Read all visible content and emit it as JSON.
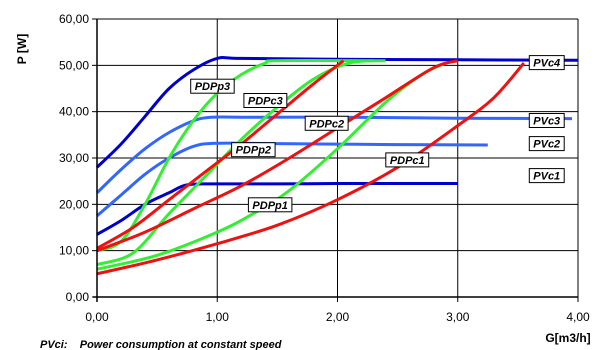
{
  "chart_data": {
    "type": "line",
    "xlabel": "G[m3/h]",
    "ylabel": "P [W]",
    "xlim": [
      0,
      4
    ],
    "ylim": [
      0,
      60
    ],
    "xticks": [
      "0,00",
      "1,00",
      "2,00",
      "3,00",
      "4,00"
    ],
    "yticks": [
      "0,00",
      "10,00",
      "20,00",
      "30,00",
      "40,00",
      "50,00",
      "60,00"
    ],
    "grid": true,
    "caption": "PVci:    Power consumption at constant speed",
    "colors": {
      "constant_speed": "#0000cc",
      "constant_speed_mid": "#3366ff",
      "pressure_proportional": "#33ee33",
      "constant_pressure": "#ee1111"
    },
    "series": [
      {
        "name": "PVc4",
        "color": "#0000cc",
        "x": [
          0,
          0.2,
          0.4,
          0.6,
          0.8,
          1.0,
          1.2,
          2.0,
          3.0,
          4.0
        ],
        "y": [
          28,
          33,
          39,
          45,
          49,
          51.5,
          51.5,
          51.3,
          51.2,
          51.1
        ]
      },
      {
        "name": "PVc3",
        "color": "#3366ff",
        "x": [
          0,
          0.2,
          0.4,
          0.6,
          0.8,
          0.95,
          1.2,
          2.0,
          3.0,
          3.95
        ],
        "y": [
          22.5,
          27.5,
          32,
          35.5,
          38,
          38.8,
          38.8,
          38.8,
          38.6,
          38.5
        ]
      },
      {
        "name": "PVc2",
        "color": "#3366ff",
        "x": [
          0,
          0.2,
          0.4,
          0.6,
          0.8,
          1.0,
          1.5,
          2.0,
          2.5,
          3.25
        ],
        "y": [
          17.5,
          22,
          26.5,
          30,
          32.5,
          33.2,
          33.1,
          33,
          32.9,
          32.8
        ]
      },
      {
        "name": "PVc1",
        "color": "#0000cc",
        "x": [
          0,
          0.2,
          0.4,
          0.6,
          0.75,
          1.0,
          1.5,
          2.0,
          2.5,
          3.0
        ],
        "y": [
          13.5,
          16.5,
          20,
          22.5,
          24.2,
          24.4,
          24.4,
          24.5,
          24.5,
          24.5
        ]
      },
      {
        "name": "PDPp3",
        "color": "#33ee33",
        "x": [
          0,
          0.2,
          0.4,
          0.6,
          0.8,
          1.0,
          1.2,
          1.4,
          1.5,
          2.3
        ],
        "y": [
          10,
          12,
          20,
          30,
          38,
          44,
          48,
          50.5,
          51,
          51
        ]
      },
      {
        "name": "PDPp2",
        "color": "#33ee33",
        "x": [
          0,
          0.3,
          0.6,
          0.9,
          1.2,
          1.5,
          1.8,
          2.1,
          2.4
        ],
        "y": [
          7,
          9.5,
          18,
          26,
          34,
          41,
          47,
          50.5,
          51
        ]
      },
      {
        "name": "PDPp1",
        "color": "#33ee33",
        "x": [
          0,
          0.5,
          1.0,
          1.3,
          1.6,
          2.0,
          2.4,
          2.7,
          2.9
        ],
        "y": [
          6,
          9,
          14,
          18,
          23,
          32,
          42,
          48,
          50.5
        ]
      },
      {
        "name": "PDPc3",
        "color": "#ee1111",
        "x": [
          0,
          0.3,
          0.6,
          0.9,
          1.2,
          1.5,
          1.8,
          2.05
        ],
        "y": [
          10.5,
          15,
          21,
          27,
          33,
          39.5,
          46,
          51
        ]
      },
      {
        "name": "PDPc2",
        "color": "#ee1111",
        "x": [
          0,
          0.4,
          0.8,
          1.2,
          1.6,
          2.0,
          2.4,
          2.8,
          3.0
        ],
        "y": [
          10,
          14,
          19,
          24,
          30,
          36.5,
          43,
          49.5,
          51
        ]
      },
      {
        "name": "PDPc1",
        "color": "#ee1111",
        "x": [
          0,
          0.5,
          1.0,
          1.5,
          2.0,
          2.5,
          3.0,
          3.3,
          3.55
        ],
        "y": [
          5,
          8,
          11.5,
          15.5,
          21,
          28,
          37,
          43,
          50.5
        ]
      }
    ],
    "annotations": [
      {
        "text": "PVc4",
        "x": 3.74,
        "y": 50.6
      },
      {
        "text": "PVc3",
        "x": 3.74,
        "y": 38.1
      },
      {
        "text": "PVc2",
        "x": 3.74,
        "y": 33.1
      },
      {
        "text": "PVc1",
        "x": 3.74,
        "y": 26.2
      },
      {
        "text": "PDPp3",
        "x": 0.96,
        "y": 45.5
      },
      {
        "text": "PDPc3",
        "x": 1.4,
        "y": 42.4
      },
      {
        "text": "PDPc2",
        "x": 1.91,
        "y": 37.5
      },
      {
        "text": "PDPp2",
        "x": 1.3,
        "y": 31.8
      },
      {
        "text": "PDPc1",
        "x": 2.58,
        "y": 29.6
      },
      {
        "text": "PDPp1",
        "x": 1.44,
        "y": 19.9
      }
    ]
  }
}
